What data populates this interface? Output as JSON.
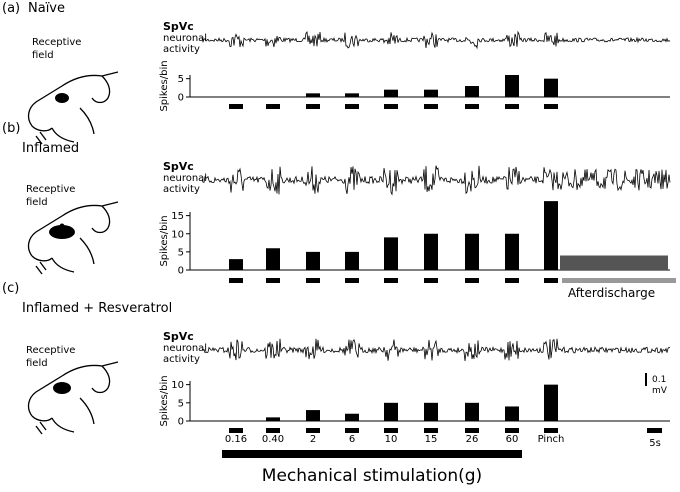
{
  "panels": [
    {
      "label": "(a)",
      "title": "Naïve",
      "field_label": [
        "Receptive",
        "field"
      ],
      "trace_label": [
        "SpVc",
        "neuronal",
        "activity"
      ],
      "y_label": "Spikes/bin",
      "ylim": [
        0,
        6
      ],
      "yticks": [
        0,
        5
      ],
      "peaks": [
        0,
        0,
        1,
        1,
        2,
        2,
        3,
        6,
        5
      ]
    },
    {
      "label": "(b)",
      "title": "Inflamed",
      "field_label": [
        "Receptive",
        "field"
      ],
      "trace_label": [
        "SpVc",
        "neuronal",
        "activity"
      ],
      "y_label": "Spikes/bin",
      "ylim": [
        0,
        16
      ],
      "yticks": [
        0,
        5,
        10,
        15
      ],
      "peaks": [
        3,
        6,
        5,
        5,
        9,
        10,
        10,
        10,
        19
      ],
      "afterdischarge_label": "Afterdischarge",
      "afterdischarge_peak": 4
    },
    {
      "label": "(c)",
      "title": "Inflamed + Resveratrol",
      "field_label": [
        "Receptive",
        "field"
      ],
      "trace_label": [
        "SpVc",
        "neuronal",
        "activity"
      ],
      "y_label": "Spikes/bin",
      "ylim": [
        0,
        11
      ],
      "yticks": [
        0,
        5,
        10
      ],
      "peaks": [
        0,
        1,
        3,
        2,
        5,
        5,
        5,
        4,
        10
      ]
    }
  ],
  "stimulus_labels": [
    "0.16",
    "0.40",
    "2",
    "6",
    "10",
    "15",
    "26",
    "60",
    "Pinch"
  ],
  "stimulation_title": "Mechanical stimulation(g)",
  "time_scale": "5s",
  "voltage_scale": [
    "0.1",
    "mV"
  ]
}
